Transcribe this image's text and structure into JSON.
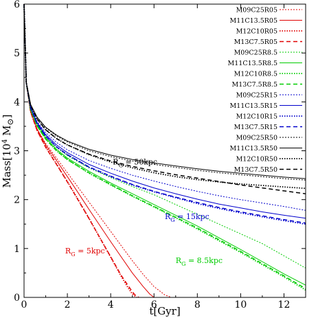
{
  "chart_data": {
    "type": "line",
    "xlabel": "t[Gyr]",
    "ylabel_main": "Mass[10",
    "ylabel_exp": "4",
    "ylabel_unit": " M",
    "ylabel_sun": "⊙",
    "ylabel_close": "]",
    "xlim": [
      0,
      13
    ],
    "ylim": [
      0,
      6
    ],
    "xticks": [
      "0",
      "2",
      "4",
      "6",
      "8",
      "10",
      "12"
    ],
    "yticks": [
      "0",
      "1",
      "2",
      "3",
      "4",
      "5",
      "6"
    ],
    "legend_position": "top-right",
    "annotations": [
      {
        "base": "R",
        "sub": "G",
        "rest": " = 50kpc",
        "x": 4.1,
        "y": 2.72,
        "color": "#000000"
      },
      {
        "base": "R",
        "sub": "G",
        "rest": " = 15kpc",
        "x": 6.5,
        "y": 1.6,
        "color": "#0000cc"
      },
      {
        "base": "R",
        "sub": "G",
        "rest": " = 5kpc",
        "x": 1.9,
        "y": 0.9,
        "color": "#e00000"
      },
      {
        "base": "R",
        "sub": "G",
        "rest": " = 8.5kpc",
        "x": 7.0,
        "y": 0.7,
        "color": "#00cc00"
      }
    ],
    "series": [
      {
        "name": "M09C25R05",
        "color": "#e00000",
        "dash": "2,2",
        "width": 1,
        "x": [
          0,
          0.1,
          0.3,
          0.6,
          1,
          1.5,
          2,
          2.5,
          3,
          3.5,
          4,
          4.5,
          5,
          5.5,
          6,
          6.5,
          6.8
        ],
        "y": [
          6,
          4.4,
          3.8,
          3.45,
          3.15,
          2.85,
          2.55,
          2.25,
          1.95,
          1.65,
          1.35,
          1.05,
          0.75,
          0.47,
          0.22,
          0.05,
          0
        ]
      },
      {
        "name": "M11C13.5R05",
        "color": "#e00000",
        "dash": "",
        "width": 1,
        "x": [
          0,
          0.1,
          0.3,
          0.6,
          1,
          1.5,
          2,
          2.5,
          3,
          3.5,
          4,
          4.5,
          5,
          5.5,
          5.8,
          6.0
        ],
        "y": [
          6,
          4.4,
          3.8,
          3.45,
          3.12,
          2.8,
          2.47,
          2.14,
          1.8,
          1.47,
          1.14,
          0.82,
          0.5,
          0.22,
          0.07,
          0
        ]
      },
      {
        "name": "M12C10R05",
        "color": "#e00000",
        "dash": "1.5,2",
        "width": 1.8,
        "x": [
          0,
          0.1,
          0.3,
          0.6,
          1,
          1.5,
          2,
          2.5,
          3,
          3.5,
          4,
          4.5,
          4.8,
          5.0,
          5.2
        ],
        "y": [
          6,
          4.4,
          3.8,
          3.42,
          3.08,
          2.73,
          2.37,
          2.0,
          1.62,
          1.22,
          0.82,
          0.42,
          0.2,
          0.07,
          0
        ]
      },
      {
        "name": "M13C7.5R05",
        "color": "#e00000",
        "dash": "6,4",
        "width": 1.5,
        "x": [
          0,
          0.1,
          0.3,
          0.6,
          1,
          1.5,
          2,
          2.5,
          3,
          3.5,
          4,
          4.5,
          4.9,
          5.1,
          5.3
        ],
        "y": [
          6,
          4.4,
          3.8,
          3.42,
          3.07,
          2.72,
          2.36,
          1.99,
          1.61,
          1.22,
          0.83,
          0.44,
          0.18,
          0.06,
          0
        ]
      },
      {
        "name": "M09C25R8.5",
        "color": "#00cc00",
        "dash": "2,2",
        "width": 1,
        "x": [
          0,
          0.1,
          0.3,
          0.6,
          1,
          1.5,
          2,
          3,
          4,
          5,
          6,
          7,
          8,
          9,
          10,
          11,
          12,
          13
        ],
        "y": [
          6,
          4.4,
          3.85,
          3.55,
          3.3,
          3.07,
          2.9,
          2.65,
          2.45,
          2.27,
          2.1,
          1.9,
          1.7,
          1.5,
          1.3,
          1.1,
          0.85,
          0.6
        ]
      },
      {
        "name": "M11C13.5R8.5",
        "color": "#00cc00",
        "dash": "",
        "width": 1,
        "x": [
          0,
          0.1,
          0.3,
          0.6,
          1,
          1.5,
          2,
          3,
          4,
          5,
          6,
          7,
          8,
          9,
          10,
          11,
          12,
          13
        ],
        "y": [
          6,
          4.4,
          3.85,
          3.53,
          3.27,
          3.03,
          2.85,
          2.58,
          2.34,
          2.12,
          1.9,
          1.68,
          1.46,
          1.22,
          0.98,
          0.73,
          0.48,
          0.25
        ]
      },
      {
        "name": "M12C10R8.5",
        "color": "#00cc00",
        "dash": "1.5,2",
        "width": 1.8,
        "x": [
          0,
          0.1,
          0.3,
          0.6,
          1,
          1.5,
          2,
          3,
          4,
          5,
          6,
          7,
          8,
          9,
          10,
          11,
          12,
          13
        ],
        "y": [
          6,
          4.4,
          3.84,
          3.51,
          3.24,
          3.0,
          2.82,
          2.54,
          2.3,
          2.07,
          1.85,
          1.63,
          1.4,
          1.16,
          0.92,
          0.67,
          0.42,
          0.15
        ]
      },
      {
        "name": "M13C7.5R8.5",
        "color": "#00cc00",
        "dash": "6,4",
        "width": 1.5,
        "x": [
          0,
          0.1,
          0.3,
          0.6,
          1,
          1.5,
          2,
          3,
          4,
          5,
          6,
          7,
          8,
          9,
          10,
          11,
          12,
          13
        ],
        "y": [
          6,
          4.4,
          3.84,
          3.51,
          3.24,
          3.0,
          2.82,
          2.55,
          2.31,
          2.08,
          1.86,
          1.64,
          1.42,
          1.18,
          0.94,
          0.69,
          0.44,
          0.18
        ]
      },
      {
        "name": "M09C25R15",
        "color": "#0000cc",
        "dash": "2,2",
        "width": 1,
        "x": [
          0,
          0.1,
          0.3,
          0.6,
          1,
          1.5,
          2,
          3,
          4,
          5,
          6,
          7,
          8,
          9,
          10,
          11,
          12,
          13
        ],
        "y": [
          6,
          4.4,
          3.9,
          3.6,
          3.37,
          3.17,
          3.02,
          2.8,
          2.64,
          2.5,
          2.38,
          2.27,
          2.17,
          2.08,
          2.0,
          1.93,
          1.86,
          1.78
        ]
      },
      {
        "name": "M11C13.5R15",
        "color": "#0000cc",
        "dash": "",
        "width": 1,
        "x": [
          0,
          0.1,
          0.3,
          0.6,
          1,
          1.5,
          2,
          3,
          4,
          5,
          6,
          7,
          8,
          9,
          10,
          11,
          12,
          13
        ],
        "y": [
          6,
          4.4,
          3.9,
          3.58,
          3.33,
          3.12,
          2.96,
          2.72,
          2.54,
          2.38,
          2.24,
          2.12,
          2.01,
          1.91,
          1.83,
          1.75,
          1.68,
          1.62
        ]
      },
      {
        "name": "M12C10R15",
        "color": "#0000cc",
        "dash": "1.5,2",
        "width": 1.8,
        "x": [
          0,
          0.1,
          0.3,
          0.6,
          1,
          1.5,
          2,
          3,
          4,
          5,
          6,
          7,
          8,
          9,
          10,
          11,
          12,
          13
        ],
        "y": [
          6,
          4.4,
          3.88,
          3.56,
          3.3,
          3.08,
          2.92,
          2.66,
          2.47,
          2.3,
          2.16,
          2.04,
          1.92,
          1.82,
          1.73,
          1.65,
          1.57,
          1.5
        ]
      },
      {
        "name": "M13C7.5R15",
        "color": "#0000cc",
        "dash": "6,4",
        "width": 1.5,
        "x": [
          0,
          0.1,
          0.3,
          0.6,
          1,
          1.5,
          2,
          3,
          4,
          5,
          6,
          7,
          8,
          9,
          10,
          11,
          12,
          13
        ],
        "y": [
          6,
          4.4,
          3.88,
          3.56,
          3.3,
          3.08,
          2.92,
          2.67,
          2.48,
          2.31,
          2.17,
          2.05,
          1.94,
          1.84,
          1.75,
          1.67,
          1.59,
          1.52
        ]
      },
      {
        "name": "M09C25R50",
        "color": "#000000",
        "dash": "2,2",
        "width": 1,
        "x": [
          0,
          0.1,
          0.3,
          0.6,
          1,
          1.5,
          2,
          3,
          4,
          5,
          6,
          7,
          8,
          9,
          10,
          11,
          12,
          13
        ],
        "y": [
          6,
          4.4,
          3.95,
          3.68,
          3.47,
          3.3,
          3.18,
          3.0,
          2.88,
          2.79,
          2.72,
          2.66,
          2.6,
          2.55,
          2.51,
          2.47,
          2.43,
          2.4
        ]
      },
      {
        "name": "M11C13.5R50",
        "color": "#000000",
        "dash": "",
        "width": 1,
        "x": [
          0,
          0.1,
          0.3,
          0.6,
          1,
          1.5,
          2,
          3,
          4,
          5,
          6,
          7,
          8,
          9,
          10,
          11,
          12,
          13
        ],
        "y": [
          6,
          4.4,
          3.95,
          3.69,
          3.48,
          3.32,
          3.2,
          3.03,
          2.91,
          2.82,
          2.75,
          2.69,
          2.63,
          2.58,
          2.54,
          2.5,
          2.46,
          2.43
        ]
      },
      {
        "name": "M12C10R50",
        "color": "#000000",
        "dash": "1.5,2",
        "width": 1.8,
        "x": [
          0,
          0.1,
          0.3,
          0.6,
          1,
          1.5,
          2,
          3,
          4,
          5,
          6,
          7,
          8,
          9,
          10,
          11,
          12,
          13
        ],
        "y": [
          6,
          4.4,
          3.93,
          3.65,
          3.43,
          3.25,
          3.12,
          2.92,
          2.77,
          2.65,
          2.55,
          2.47,
          2.41,
          2.36,
          2.32,
          2.29,
          2.26,
          2.23
        ]
      },
      {
        "name": "M13C7.5R50",
        "color": "#000000",
        "dash": "6,4",
        "width": 1.5,
        "x": [
          0,
          0.1,
          0.3,
          0.6,
          1,
          1.5,
          2,
          3,
          4,
          5,
          6,
          7,
          8,
          9,
          10,
          11,
          12,
          13
        ],
        "y": [
          6,
          4.4,
          3.93,
          3.65,
          3.43,
          3.25,
          3.12,
          2.93,
          2.79,
          2.68,
          2.59,
          2.51,
          2.44,
          2.37,
          2.3,
          2.24,
          2.18,
          2.12
        ]
      }
    ]
  }
}
